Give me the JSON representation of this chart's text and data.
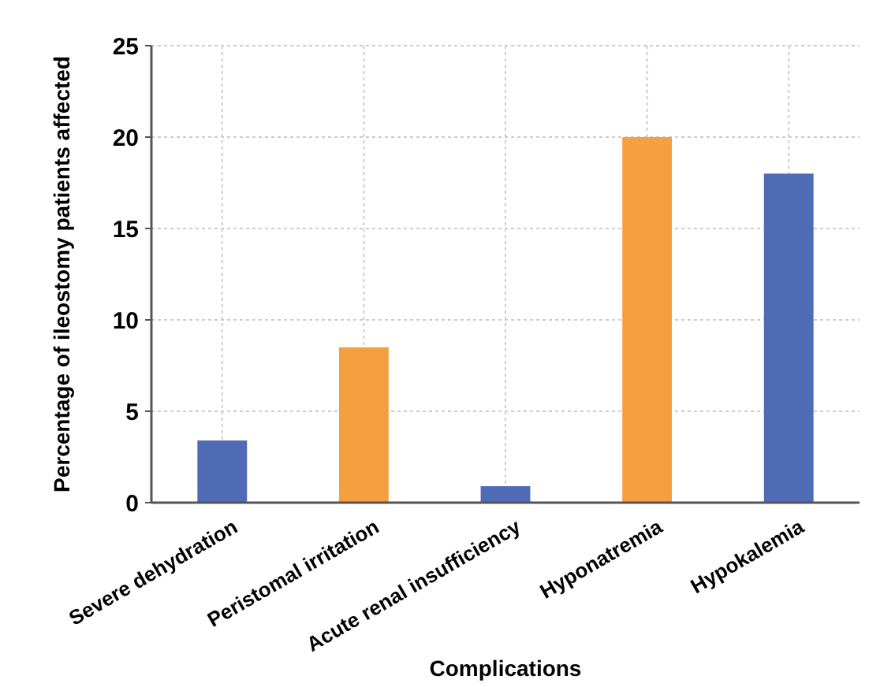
{
  "chart_data": {
    "type": "bar",
    "xlabel": "Complications",
    "ylabel": "Percentage of ileostomy patients affected",
    "categories": [
      "Severe dehydration",
      "Peristomal irritation",
      "Acute renal insufficiency",
      "Hyponatremia",
      "Hypokalemia"
    ],
    "values": [
      3.4,
      8.5,
      0.9,
      20,
      18
    ],
    "colors": [
      "#4f6bb5",
      "#f5a040",
      "#4f6bb5",
      "#f5a040",
      "#4f6bb5"
    ],
    "ylim": [
      0,
      25
    ],
    "yticks": [
      0,
      5,
      10,
      15,
      20,
      25
    ],
    "grid": true
  }
}
